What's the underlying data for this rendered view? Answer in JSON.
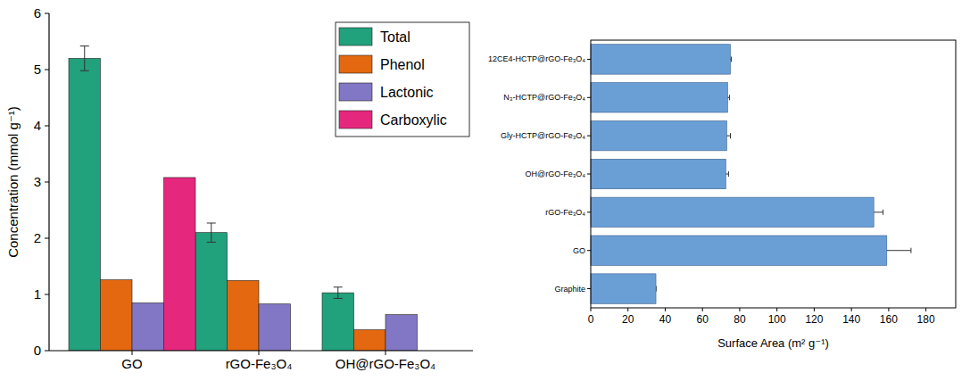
{
  "chart_data": [
    {
      "type": "bar",
      "ylabel": "Concentration (mmol g⁻¹)",
      "categories": [
        "GO",
        "rGO-Fe₃O₄",
        "OH@rGO-Fe₃O₄"
      ],
      "series": [
        {
          "name": "Total",
          "color": "#21a17c",
          "values": [
            5.2,
            2.1,
            1.03
          ],
          "errors": [
            0.22,
            0.17,
            0.1
          ]
        },
        {
          "name": "Phenol",
          "color": "#e3680f",
          "values": [
            1.26,
            1.25,
            0.37
          ]
        },
        {
          "name": "Lactonic",
          "color": "#8277c4",
          "values": [
            0.85,
            0.83,
            0.64
          ]
        },
        {
          "name": "Carboxylic",
          "color": "#e5287d",
          "values": [
            3.08,
            null,
            null
          ]
        }
      ],
      "ylim": [
        0,
        6
      ],
      "yticks": [
        0,
        1,
        2,
        3,
        4,
        5,
        6
      ],
      "legend": "upper right",
      "grid": false
    },
    {
      "type": "bar",
      "orientation": "horizontal",
      "xlabel": "Surface Area (m² g⁻¹)",
      "categories": [
        "Graphite",
        "GO",
        "rGO-Fe₃O₄",
        "OH@rGO-Fe₃O₄",
        "Gly-HCTP@rGO-Fe₃O₄",
        "N₃-HCTP@rGO-Fe₃O₄",
        "12CE4-HCTP@rGO-Fe₃O₄"
      ],
      "values": [
        35,
        159,
        152,
        72.5,
        73,
        73.5,
        75
      ],
      "errors": [
        0,
        13,
        5,
        1.5,
        2,
        1,
        0.5
      ],
      "color": "#6a9fd6",
      "xlim": [
        0,
        196
      ],
      "xticks": [
        0,
        20,
        40,
        60,
        80,
        100,
        120,
        140,
        160,
        180
      ],
      "grid": false
    }
  ]
}
